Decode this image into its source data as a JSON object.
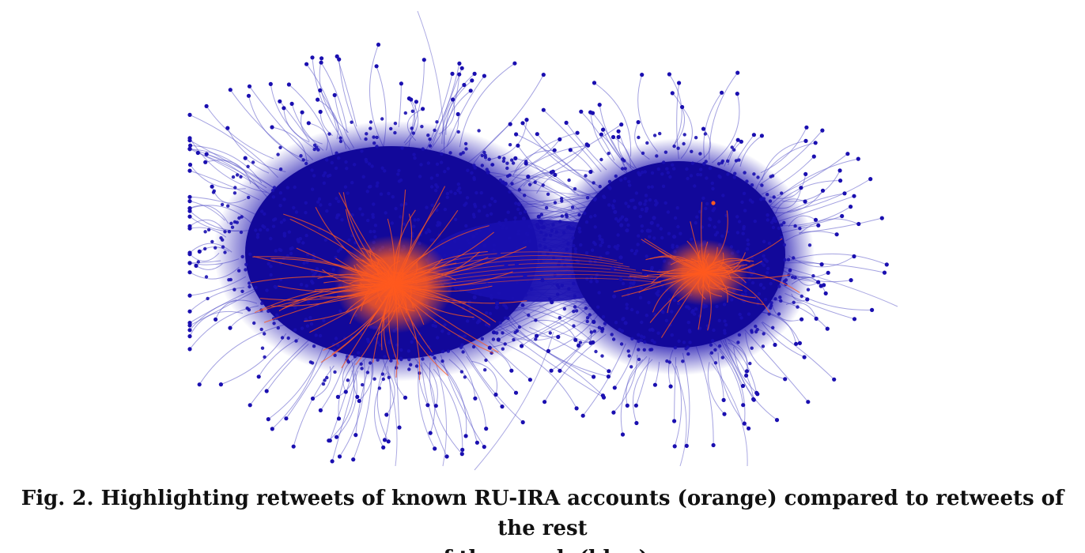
{
  "figure": {
    "caption_line1": "Fig. 2. Highlighting retweets of known RU-IRA accounts (orange) compared to retweets of the rest",
    "caption_line2": "of the graph (blue)."
  },
  "colors": {
    "blue_nodes": "#1a0fb0",
    "blue_core": "#12089a",
    "orange_edges": "#ff5a1f",
    "edge_blue": "#5a55c8"
  }
}
